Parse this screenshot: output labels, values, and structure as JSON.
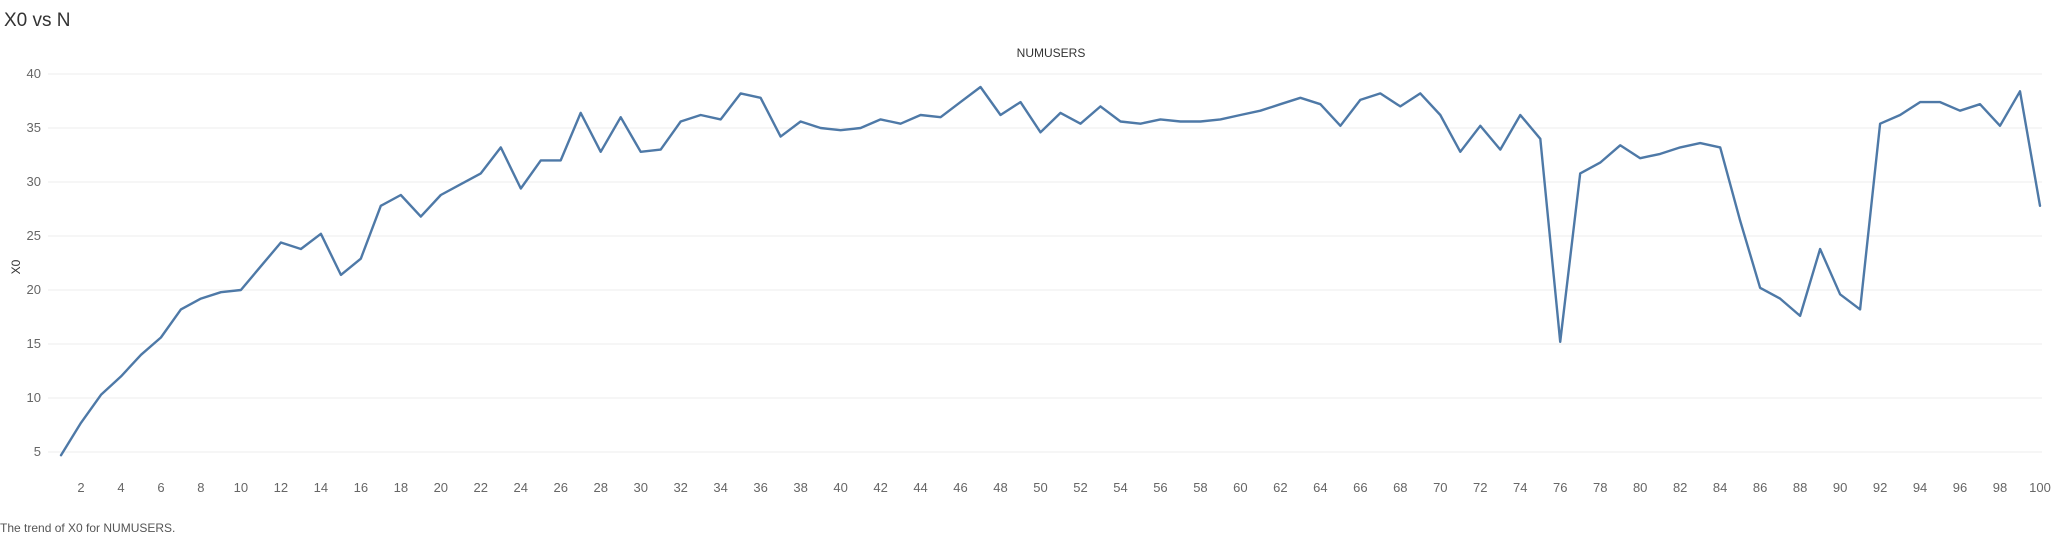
{
  "page": {
    "title": "X0 vs N",
    "caption": "The trend of X0 for NUMUSERS."
  },
  "chart_data": {
    "type": "line",
    "title": "NUMUSERS",
    "xlabel": "NUMUSERS",
    "ylabel": "X0",
    "xlim": [
      0,
      100
    ],
    "ylim": [
      3,
      41
    ],
    "yticks": [
      5,
      10,
      15,
      20,
      25,
      30,
      35,
      40
    ],
    "xticks": [
      2,
      4,
      6,
      8,
      10,
      12,
      14,
      16,
      18,
      20,
      22,
      24,
      26,
      28,
      30,
      32,
      34,
      36,
      38,
      40,
      42,
      44,
      46,
      48,
      50,
      52,
      54,
      56,
      58,
      60,
      62,
      64,
      66,
      68,
      70,
      72,
      74,
      76,
      78,
      80,
      82,
      84,
      86,
      88,
      90,
      92,
      94,
      96,
      98,
      100
    ],
    "grid": true,
    "legend": "none",
    "color": "#4e79a7",
    "x": [
      1,
      2,
      3,
      4,
      5,
      6,
      7,
      8,
      9,
      10,
      11,
      12,
      13,
      14,
      15,
      16,
      17,
      18,
      19,
      20,
      21,
      22,
      23,
      24,
      25,
      26,
      27,
      28,
      29,
      30,
      31,
      32,
      33,
      34,
      35,
      36,
      37,
      38,
      39,
      40,
      41,
      42,
      43,
      44,
      45,
      46,
      47,
      48,
      49,
      50,
      51,
      52,
      53,
      54,
      55,
      56,
      57,
      58,
      59,
      60,
      61,
      62,
      63,
      64,
      65,
      66,
      67,
      68,
      69,
      70,
      71,
      72,
      73,
      74,
      75,
      76,
      77,
      78,
      79,
      80,
      81,
      82,
      83,
      84,
      85,
      86,
      87,
      88,
      89,
      90,
      91,
      92,
      93,
      94,
      95,
      96,
      97,
      98,
      99,
      100
    ],
    "values": [
      4.7,
      7.7,
      10.3,
      12.0,
      14.0,
      15.6,
      18.2,
      19.2,
      19.8,
      20.0,
      22.2,
      24.4,
      23.8,
      25.2,
      21.4,
      22.9,
      27.8,
      28.8,
      26.8,
      28.8,
      29.8,
      30.8,
      33.2,
      29.4,
      32.0,
      32.0,
      36.4,
      32.8,
      36.0,
      32.8,
      33.0,
      35.6,
      36.2,
      35.8,
      38.2,
      37.8,
      34.2,
      35.6,
      35.0,
      34.8,
      35.0,
      35.8,
      35.4,
      36.2,
      36.0,
      37.4,
      38.8,
      36.2,
      37.4,
      34.6,
      36.4,
      35.4,
      37.0,
      35.6,
      35.4,
      35.8,
      35.6,
      35.6,
      35.8,
      36.2,
      36.6,
      37.2,
      37.8,
      37.2,
      35.2,
      37.6,
      38.2,
      37.0,
      38.2,
      36.2,
      32.8,
      35.2,
      33.0,
      36.2,
      34.0,
      15.2,
      30.8,
      31.8,
      33.4,
      32.2,
      32.6,
      33.2,
      33.6,
      33.2,
      26.4,
      20.2,
      19.2,
      17.6,
      23.8,
      19.6,
      18.2,
      35.4,
      36.2,
      37.4,
      37.4,
      36.6,
      37.2,
      35.2,
      38.4,
      27.8
    ]
  }
}
